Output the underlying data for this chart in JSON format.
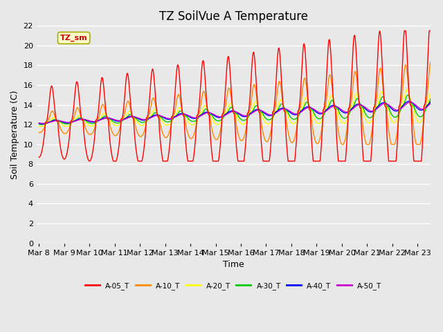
{
  "title": "TZ SoilVue A Temperature",
  "xlabel": "Time",
  "ylabel": "Soil Temperature (C)",
  "annotation_text": "TZ_sm",
  "ylim": [
    0,
    22
  ],
  "yticks": [
    0,
    2,
    4,
    6,
    8,
    10,
    12,
    14,
    16,
    18,
    20,
    22
  ],
  "x_tick_labels": [
    "Mar 8",
    "Mar 9",
    "Mar 10",
    "Mar 11",
    "Mar 12",
    "Mar 13",
    "Mar 14",
    "Mar 15",
    "Mar 16",
    "Mar 17",
    "Mar 18",
    "Mar 19",
    "Mar 20",
    "Mar 21",
    "Mar 22",
    "Mar 23"
  ],
  "series_colors": {
    "A-05_T": "#ff0000",
    "A-10_T": "#ff8800",
    "A-20_T": "#ffff00",
    "A-30_T": "#00cc00",
    "A-40_T": "#0000ff",
    "A-50_T": "#cc00cc"
  },
  "background_color": "#e8e8e8",
  "grid_color": "#ffffff",
  "title_fontsize": 12,
  "axis_fontsize": 8,
  "linewidth": 1.0
}
